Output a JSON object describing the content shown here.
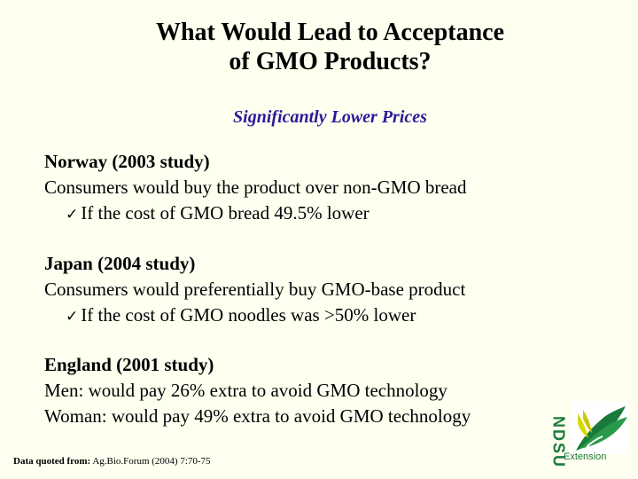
{
  "slide": {
    "title_line1": "What Would Lead to Acceptance",
    "title_line2": "of GMO Products?",
    "subtitle": "Significantly Lower Prices"
  },
  "sections": [
    {
      "heading": "Norway (2003 study)",
      "lines": [
        "Consumers would buy the product over non-GMO bread"
      ],
      "bullet": "If the cost of GMO bread 49.5% lower"
    },
    {
      "heading": "Japan (2004 study)",
      "lines": [
        "Consumers would preferentially buy GMO-base product"
      ],
      "bullet": "If the cost of GMO noodles was >50% lower"
    },
    {
      "heading": "England (2001 study)",
      "lines": [
        "Men: would pay 26% extra to avoid GMO technology",
        "Woman: would pay 49% extra to avoid GMO technology"
      ]
    }
  ],
  "footer": {
    "source_label": "Data quoted from:",
    "source_text": " Ag.Bio.Forum (2004) 7:70-75"
  },
  "logo": {
    "text": "NDSU",
    "extension": "Extension",
    "icon": "wheat-leaf-icon",
    "green": "#1a7a3a",
    "yellow": "#d8d800"
  },
  "colors": {
    "background": "#fffff0",
    "subtitle": "#2a1a99"
  }
}
